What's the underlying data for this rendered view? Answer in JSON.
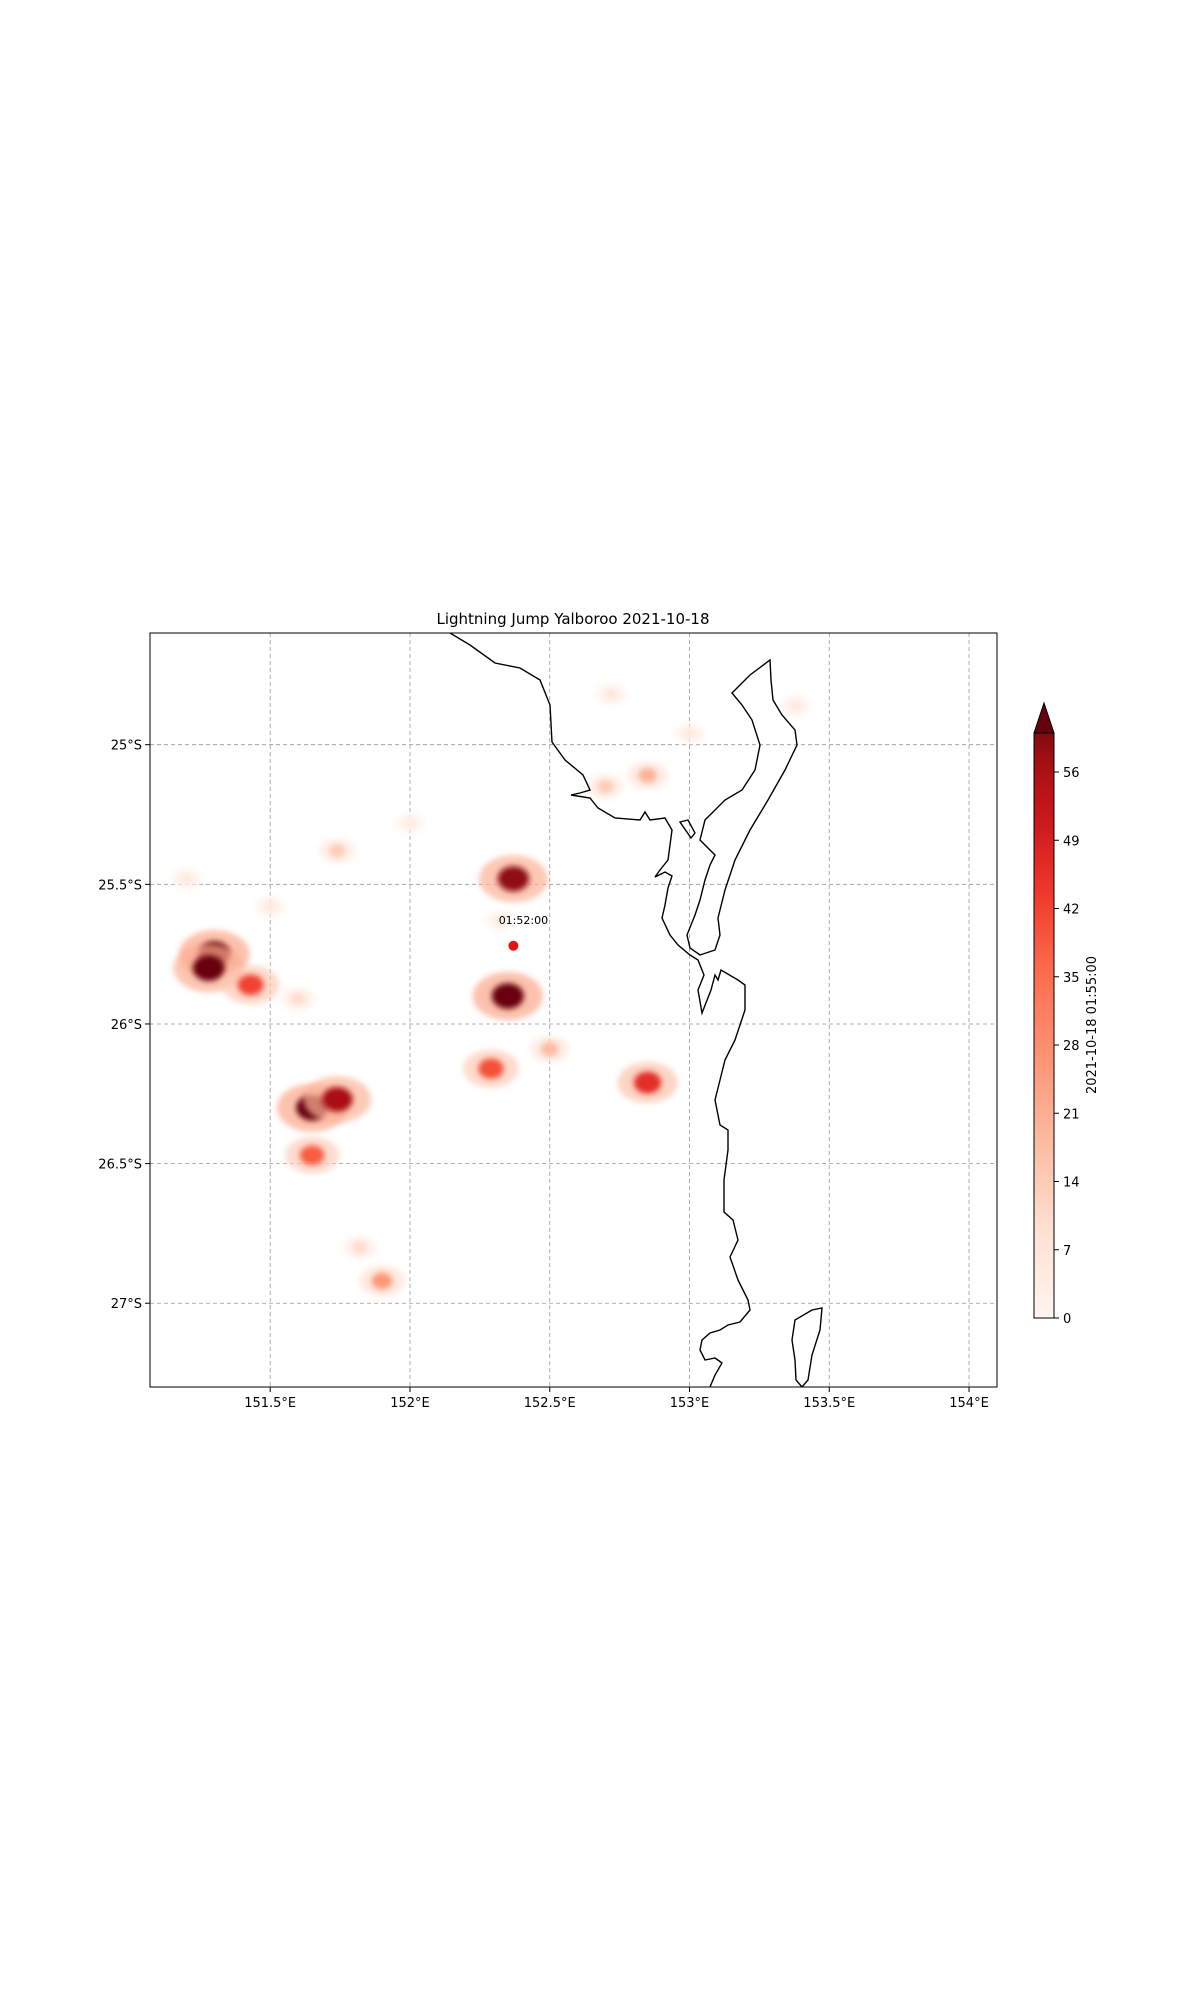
{
  "title": "Lightning Jump Yalboroo 2021-10-18",
  "map": {
    "lon_range": [
      151.07,
      154.1
    ],
    "lat_range": [
      -27.3,
      -24.6
    ],
    "lon_ticks": [
      151.5,
      152,
      152.5,
      153,
      153.5,
      154
    ],
    "lon_tick_labels": [
      "151.5°E",
      "152°E",
      "152.5°E",
      "153°E",
      "153.5°E",
      "154°E"
    ],
    "lat_ticks": [
      -25,
      -25.5,
      -26,
      -26.5,
      -27
    ],
    "lat_tick_labels": [
      "25°S",
      "25.5°S",
      "26°S",
      "26.5°S",
      "27°S"
    ],
    "grid": true
  },
  "marker": {
    "lon": 152.37,
    "lat": -25.72,
    "label": "01:52:00",
    "color": "#e3150f"
  },
  "colorbar": {
    "label": "2021-10-18 01:55:00",
    "cmap": "Reds",
    "min": 0,
    "max": 60,
    "ticks": [
      0,
      7,
      14,
      21,
      28,
      35,
      42,
      49,
      56
    ],
    "extend": "max"
  },
  "chart_data": {
    "type": "heatmap",
    "title": "Lightning Jump Yalboroo 2021-10-18",
    "value_label": "2021-10-18 01:55:00",
    "value_range": [
      0,
      60
    ],
    "cells": [
      {
        "lon": 151.3,
        "lat": -25.75,
        "value": 64
      },
      {
        "lon": 151.28,
        "lat": -25.8,
        "value": 60
      },
      {
        "lon": 151.43,
        "lat": -25.86,
        "value": 42
      },
      {
        "lon": 151.6,
        "lat": -25.91,
        "value": 10
      },
      {
        "lon": 151.65,
        "lat": -26.3,
        "value": 64
      },
      {
        "lon": 151.74,
        "lat": -26.27,
        "value": 56
      },
      {
        "lon": 151.65,
        "lat": -26.47,
        "value": 38
      },
      {
        "lon": 151.74,
        "lat": -25.38,
        "value": 14
      },
      {
        "lon": 152.37,
        "lat": -25.48,
        "value": 58
      },
      {
        "lon": 152.35,
        "lat": -25.9,
        "value": 64
      },
      {
        "lon": 152.29,
        "lat": -26.16,
        "value": 40
      },
      {
        "lon": 152.5,
        "lat": -26.09,
        "value": 18
      },
      {
        "lon": 152.85,
        "lat": -26.21,
        "value": 46
      },
      {
        "lon": 152.7,
        "lat": -25.15,
        "value": 14
      },
      {
        "lon": 152.85,
        "lat": -25.11,
        "value": 20
      },
      {
        "lon": 151.9,
        "lat": -26.92,
        "value": 26
      },
      {
        "lon": 151.82,
        "lat": -26.8,
        "value": 10
      },
      {
        "lon": 151.2,
        "lat": -25.48,
        "value": 5
      },
      {
        "lon": 151.5,
        "lat": -25.58,
        "value": 5
      },
      {
        "lon": 152.72,
        "lat": -24.82,
        "value": 6
      },
      {
        "lon": 153.0,
        "lat": -24.96,
        "value": 5
      },
      {
        "lon": 153.38,
        "lat": -24.86,
        "value": 5
      },
      {
        "lon": 152.32,
        "lat": -25.63,
        "value": 4
      },
      {
        "lon": 152.0,
        "lat": -25.28,
        "value": 4
      }
    ]
  }
}
